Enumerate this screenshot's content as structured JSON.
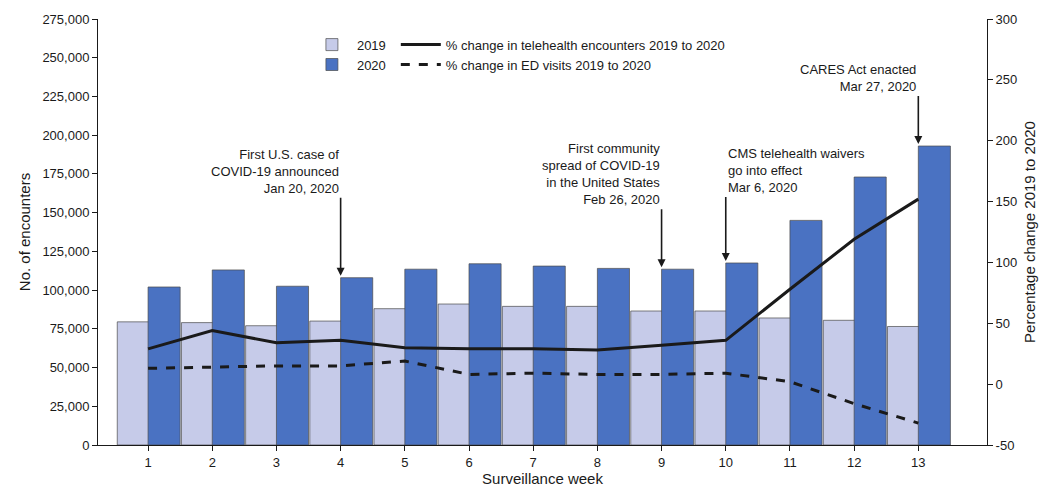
{
  "chart_data": {
    "type": "bar",
    "x_label": "Surveillance week",
    "y_label": "No. of encounters",
    "y2_label": "Percentage change 2019 to 2020",
    "x": [
      1,
      2,
      3,
      4,
      5,
      6,
      7,
      8,
      9,
      10,
      11,
      12,
      13
    ],
    "xlim": [
      0.22,
      14.07
    ],
    "xticks": [
      1,
      2,
      3,
      4,
      5,
      6,
      7,
      8,
      9,
      10,
      11,
      12,
      13
    ],
    "ylim": [
      0,
      275000
    ],
    "yticks": [
      0,
      {
        "value": 25000,
        "label": "25,000"
      },
      {
        "value": 50000,
        "label": "50,000"
      },
      {
        "value": 75000,
        "label": "75,000"
      },
      {
        "value": 100000,
        "label": "100,000"
      },
      {
        "value": 125000,
        "label": "125,000"
      },
      {
        "value": 150000,
        "label": "150,000"
      },
      {
        "value": 175000,
        "label": "175,000"
      },
      {
        "value": 200000,
        "label": "200,000"
      },
      {
        "value": 225000,
        "label": "225,000"
      },
      {
        "value": 250000,
        "label": "250,000"
      },
      {
        "value": 275000,
        "label": "275,000"
      }
    ],
    "y2lim": [
      -50,
      300
    ],
    "y2ticks": [
      -50,
      0,
      50,
      100,
      150,
      200,
      250,
      300
    ],
    "grid": false,
    "legend": "top",
    "series": [
      {
        "name": "2019",
        "type": "bar",
        "color": "#c6cbe9",
        "values": [
          79500,
          79000,
          77000,
          80000,
          88000,
          91000,
          89500,
          89500,
          86500,
          86500,
          82000,
          80500,
          76500
        ]
      },
      {
        "name": "2020",
        "type": "bar",
        "color": "#4a72c2",
        "values": [
          102000,
          113000,
          102500,
          108000,
          113500,
          117000,
          115500,
          114000,
          113500,
          117500,
          145000,
          173000,
          193000
        ]
      },
      {
        "name": "% change in telehealth encounters 2019 to 2020",
        "type": "line",
        "axis": "y2",
        "color": "#1a1a1a",
        "line_style": "solid",
        "values": [
          29,
          44,
          34,
          36,
          30,
          29,
          29,
          28,
          32,
          36,
          78,
          119,
          152
        ]
      },
      {
        "name": "% change in ED visits 2019 to 2020",
        "type": "line",
        "axis": "y2",
        "color": "#1a1a1a",
        "line_style": "dash",
        "values": [
          13,
          14,
          15,
          15,
          19,
          8,
          9,
          8,
          8,
          9,
          2,
          -16,
          -32
        ]
      }
    ],
    "annotations": [
      {
        "text": [
          "First U.S. case of",
          "COVID-19 announced",
          "Jan 20, 2020"
        ],
        "x": 4
      },
      {
        "text": [
          "First community",
          "spread of COVID-19",
          "in the United States",
          "Feb 26, 2020"
        ],
        "x": 9
      },
      {
        "text": [
          "CMS telehealth waivers",
          "go into effect",
          "Mar 6, 2020"
        ],
        "x": 10
      },
      {
        "text": [
          "CARES Act enacted",
          "Mar 27, 2020"
        ],
        "x": 13
      }
    ]
  }
}
